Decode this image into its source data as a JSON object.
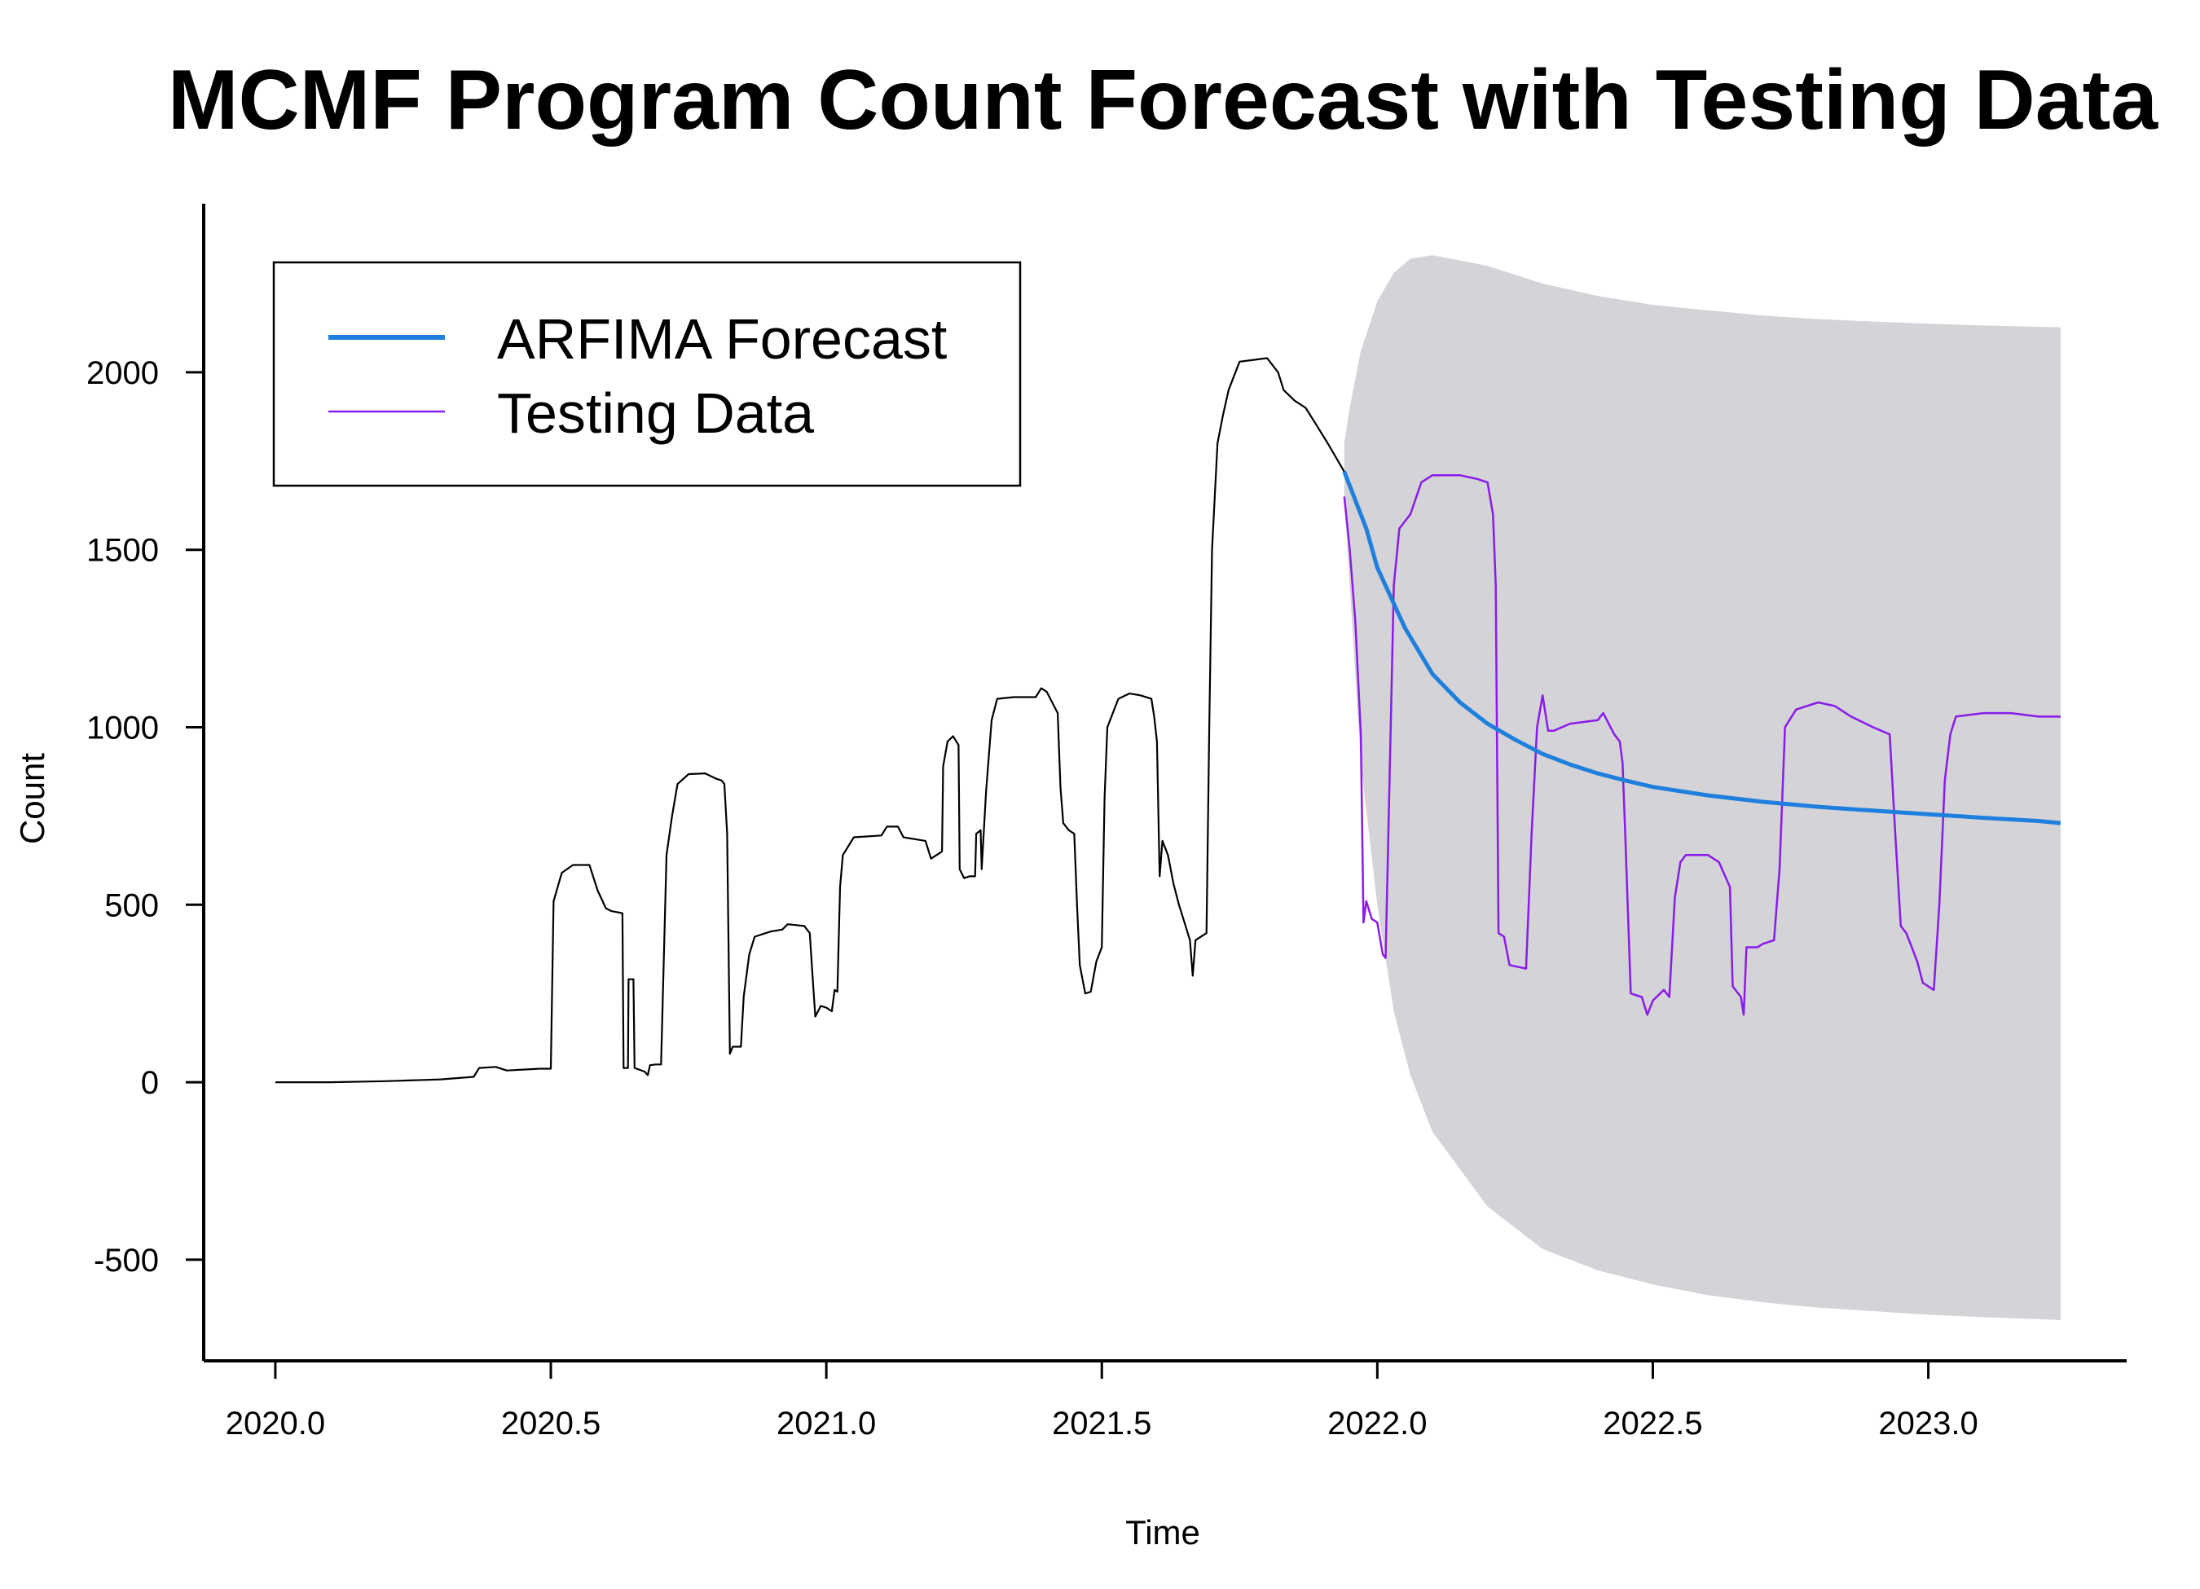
{
  "chart_data": {
    "type": "line",
    "title": "MCMF Program Count Forecast with Testing Data",
    "xlabel": "Time",
    "ylabel": "Count",
    "xlim": [
      2019.87,
      2023.36
    ],
    "ylim": [
      -785,
      2475
    ],
    "x_ticks": [
      2020.0,
      2020.5,
      2021.0,
      2021.5,
      2022.0,
      2022.5,
      2023.0
    ],
    "x_tick_labels": [
      "2020.0",
      "2020.5",
      "2021.0",
      "2021.5",
      "2022.0",
      "2022.5",
      "2023.0"
    ],
    "y_ticks": [
      -500,
      0,
      500,
      1000,
      1500,
      2000
    ],
    "y_tick_labels": [
      "-500",
      "0",
      "500",
      "1000",
      "1500",
      "2000"
    ],
    "grid": false,
    "legend_position": "top-left",
    "legend": [
      {
        "label": "ARFIMA Forecast",
        "color": "#1f7fdc",
        "series": "forecast"
      },
      {
        "label": "Testing Data",
        "color": "#8a1be8",
        "series": "testing"
      }
    ],
    "colors": {
      "training": "#000000",
      "forecast": "#1f7fdc",
      "testing": "#8a1be8",
      "interval": "#d3d3d8"
    },
    "series": [
      {
        "key": "training",
        "points": [
          [
            2020.0,
            0
          ],
          [
            2020.1,
            0
          ],
          [
            2020.2,
            3
          ],
          [
            2020.3,
            8
          ],
          [
            2020.36,
            15
          ],
          [
            2020.37,
            40
          ],
          [
            2020.4,
            43
          ],
          [
            2020.42,
            33
          ],
          [
            2020.48,
            38
          ],
          [
            2020.5,
            38
          ],
          [
            2020.505,
            510
          ],
          [
            2020.52,
            590
          ],
          [
            2020.54,
            612
          ],
          [
            2020.57,
            612
          ],
          [
            2020.585,
            540
          ],
          [
            2020.6,
            490
          ],
          [
            2020.61,
            482
          ],
          [
            2020.63,
            476
          ],
          [
            2020.632,
            40
          ],
          [
            2020.64,
            40
          ],
          [
            2020.641,
            290
          ],
          [
            2020.65,
            290
          ],
          [
            2020.652,
            40
          ],
          [
            2020.67,
            30
          ],
          [
            2020.676,
            20
          ],
          [
            2020.68,
            48
          ],
          [
            2020.69,
            50
          ],
          [
            2020.7,
            50
          ],
          [
            2020.71,
            640
          ],
          [
            2020.72,
            750
          ],
          [
            2020.73,
            840
          ],
          [
            2020.75,
            868
          ],
          [
            2020.78,
            870
          ],
          [
            2020.8,
            855
          ],
          [
            2020.81,
            850
          ],
          [
            2020.815,
            840
          ],
          [
            2020.82,
            700
          ],
          [
            2020.825,
            80
          ],
          [
            2020.83,
            100
          ],
          [
            2020.845,
            100
          ],
          [
            2020.85,
            240
          ],
          [
            2020.86,
            360
          ],
          [
            2020.87,
            410
          ],
          [
            2020.9,
            425
          ],
          [
            2020.92,
            430
          ],
          [
            2020.93,
            445
          ],
          [
            2020.96,
            440
          ],
          [
            2020.97,
            420
          ],
          [
            2020.975,
            300
          ],
          [
            2020.98,
            185
          ],
          [
            2020.99,
            215
          ],
          [
            2021.0,
            210
          ],
          [
            2021.01,
            200
          ],
          [
            2021.015,
            260
          ],
          [
            2021.02,
            255
          ],
          [
            2021.025,
            550
          ],
          [
            2021.03,
            640
          ],
          [
            2021.05,
            690
          ],
          [
            2021.1,
            695
          ],
          [
            2021.11,
            720
          ],
          [
            2021.13,
            720
          ],
          [
            2021.14,
            690
          ],
          [
            2021.18,
            680
          ],
          [
            2021.19,
            630
          ],
          [
            2021.2,
            640
          ],
          [
            2021.21,
            650
          ],
          [
            2021.212,
            890
          ],
          [
            2021.22,
            960
          ],
          [
            2021.23,
            975
          ],
          [
            2021.24,
            950
          ],
          [
            2021.242,
            600
          ],
          [
            2021.25,
            575
          ],
          [
            2021.26,
            580
          ],
          [
            2021.27,
            580
          ],
          [
            2021.272,
            700
          ],
          [
            2021.28,
            710
          ],
          [
            2021.282,
            600
          ],
          [
            2021.29,
            820
          ],
          [
            2021.3,
            1020
          ],
          [
            2021.31,
            1080
          ],
          [
            2021.34,
            1085
          ],
          [
            2021.38,
            1085
          ],
          [
            2021.39,
            1110
          ],
          [
            2021.4,
            1100
          ],
          [
            2021.42,
            1040
          ],
          [
            2021.425,
            830
          ],
          [
            2021.43,
            730
          ],
          [
            2021.44,
            710
          ],
          [
            2021.45,
            700
          ],
          [
            2021.455,
            500
          ],
          [
            2021.46,
            330
          ],
          [
            2021.47,
            250
          ],
          [
            2021.48,
            255
          ],
          [
            2021.49,
            340
          ],
          [
            2021.5,
            380
          ],
          [
            2021.505,
            800
          ],
          [
            2021.51,
            1000
          ],
          [
            2021.53,
            1080
          ],
          [
            2021.55,
            1095
          ],
          [
            2021.57,
            1090
          ],
          [
            2021.59,
            1080
          ],
          [
            2021.595,
            1030
          ],
          [
            2021.6,
            960
          ],
          [
            2021.605,
            580
          ],
          [
            2021.61,
            680
          ],
          [
            2021.62,
            640
          ],
          [
            2021.63,
            560
          ],
          [
            2021.64,
            500
          ],
          [
            2021.65,
            450
          ],
          [
            2021.66,
            400
          ],
          [
            2021.665,
            300
          ],
          [
            2021.67,
            400
          ],
          [
            2021.69,
            420
          ],
          [
            2021.695,
            1000
          ],
          [
            2021.7,
            1500
          ],
          [
            2021.71,
            1800
          ],
          [
            2021.72,
            1880
          ],
          [
            2021.73,
            1950
          ],
          [
            2021.75,
            2030
          ],
          [
            2021.8,
            2040
          ],
          [
            2021.82,
            2000
          ],
          [
            2021.83,
            1950
          ],
          [
            2021.85,
            1920
          ],
          [
            2021.87,
            1900
          ],
          [
            2021.89,
            1850
          ],
          [
            2021.91,
            1800
          ],
          [
            2021.94,
            1720
          ]
        ]
      },
      {
        "key": "forecast",
        "name": "ARFIMA Forecast",
        "points": [
          [
            2021.94,
            1720
          ],
          [
            2021.98,
            1560
          ],
          [
            2022.0,
            1450
          ],
          [
            2022.05,
            1280
          ],
          [
            2022.1,
            1150
          ],
          [
            2022.15,
            1070
          ],
          [
            2022.2,
            1010
          ],
          [
            2022.25,
            965
          ],
          [
            2022.3,
            925
          ],
          [
            2022.35,
            895
          ],
          [
            2022.4,
            870
          ],
          [
            2022.45,
            850
          ],
          [
            2022.5,
            832
          ],
          [
            2022.6,
            808
          ],
          [
            2022.7,
            790
          ],
          [
            2022.8,
            776
          ],
          [
            2022.9,
            765
          ],
          [
            2023.0,
            755
          ],
          [
            2023.1,
            745
          ],
          [
            2023.2,
            736
          ],
          [
            2023.24,
            730
          ]
        ]
      },
      {
        "key": "testing",
        "name": "Testing Data",
        "points": [
          [
            2021.94,
            1650
          ],
          [
            2021.95,
            1500
          ],
          [
            2021.96,
            1300
          ],
          [
            2021.97,
            980
          ],
          [
            2021.975,
            450
          ],
          [
            2021.98,
            510
          ],
          [
            2021.99,
            460
          ],
          [
            2022.0,
            450
          ],
          [
            2022.01,
            360
          ],
          [
            2022.015,
            350
          ],
          [
            2022.02,
            700
          ],
          [
            2022.03,
            1400
          ],
          [
            2022.04,
            1560
          ],
          [
            2022.06,
            1600
          ],
          [
            2022.08,
            1690
          ],
          [
            2022.1,
            1710
          ],
          [
            2022.15,
            1710
          ],
          [
            2022.18,
            1700
          ],
          [
            2022.2,
            1690
          ],
          [
            2022.21,
            1600
          ],
          [
            2022.215,
            1400
          ],
          [
            2022.22,
            420
          ],
          [
            2022.23,
            410
          ],
          [
            2022.24,
            330
          ],
          [
            2022.27,
            320
          ],
          [
            2022.28,
            700
          ],
          [
            2022.29,
            1000
          ],
          [
            2022.3,
            1090
          ],
          [
            2022.31,
            990
          ],
          [
            2022.32,
            990
          ],
          [
            2022.35,
            1010
          ],
          [
            2022.4,
            1020
          ],
          [
            2022.41,
            1040
          ],
          [
            2022.43,
            980
          ],
          [
            2022.44,
            960
          ],
          [
            2022.445,
            900
          ],
          [
            2022.45,
            700
          ],
          [
            2022.46,
            250
          ],
          [
            2022.48,
            240
          ],
          [
            2022.49,
            190
          ],
          [
            2022.5,
            230
          ],
          [
            2022.52,
            260
          ],
          [
            2022.53,
            240
          ],
          [
            2022.54,
            520
          ],
          [
            2022.55,
            620
          ],
          [
            2022.56,
            640
          ],
          [
            2022.6,
            640
          ],
          [
            2022.62,
            620
          ],
          [
            2022.64,
            550
          ],
          [
            2022.645,
            270
          ],
          [
            2022.66,
            240
          ],
          [
            2022.665,
            190
          ],
          [
            2022.67,
            380
          ],
          [
            2022.69,
            380
          ],
          [
            2022.7,
            390
          ],
          [
            2022.72,
            400
          ],
          [
            2022.73,
            600
          ],
          [
            2022.74,
            1000
          ],
          [
            2022.76,
            1050
          ],
          [
            2022.8,
            1070
          ],
          [
            2022.83,
            1060
          ],
          [
            2022.86,
            1030
          ],
          [
            2022.9,
            1000
          ],
          [
            2022.93,
            980
          ],
          [
            2022.94,
            700
          ],
          [
            2022.95,
            440
          ],
          [
            2022.96,
            420
          ],
          [
            2022.97,
            380
          ],
          [
            2022.98,
            340
          ],
          [
            2022.99,
            280
          ],
          [
            2023.01,
            260
          ],
          [
            2023.02,
            500
          ],
          [
            2023.03,
            850
          ],
          [
            2023.04,
            980
          ],
          [
            2023.05,
            1030
          ],
          [
            2023.1,
            1040
          ],
          [
            2023.15,
            1040
          ],
          [
            2023.2,
            1030
          ],
          [
            2023.24,
            1030
          ]
        ]
      }
    ],
    "interval": {
      "upper": [
        [
          2021.94,
          1800
        ],
        [
          2021.95,
          1900
        ],
        [
          2021.97,
          2060
        ],
        [
          2022.0,
          2200
        ],
        [
          2022.03,
          2280
        ],
        [
          2022.06,
          2320
        ],
        [
          2022.1,
          2330
        ],
        [
          2022.2,
          2300
        ],
        [
          2022.3,
          2250
        ],
        [
          2022.4,
          2215
        ],
        [
          2022.5,
          2190
        ],
        [
          2022.6,
          2175
        ],
        [
          2022.7,
          2160
        ],
        [
          2022.8,
          2150
        ],
        [
          2022.9,
          2143
        ],
        [
          2023.0,
          2137
        ],
        [
          2023.1,
          2132
        ],
        [
          2023.24,
          2127
        ]
      ],
      "lower": [
        [
          2021.94,
          1650
        ],
        [
          2021.95,
          1400
        ],
        [
          2021.97,
          900
        ],
        [
          2022.0,
          500
        ],
        [
          2022.03,
          200
        ],
        [
          2022.06,
          20
        ],
        [
          2022.1,
          -140
        ],
        [
          2022.2,
          -350
        ],
        [
          2022.3,
          -470
        ],
        [
          2022.4,
          -530
        ],
        [
          2022.5,
          -570
        ],
        [
          2022.6,
          -600
        ],
        [
          2022.7,
          -620
        ],
        [
          2022.8,
          -635
        ],
        [
          2022.9,
          -645
        ],
        [
          2023.0,
          -655
        ],
        [
          2023.1,
          -662
        ],
        [
          2023.24,
          -670
        ]
      ]
    }
  }
}
